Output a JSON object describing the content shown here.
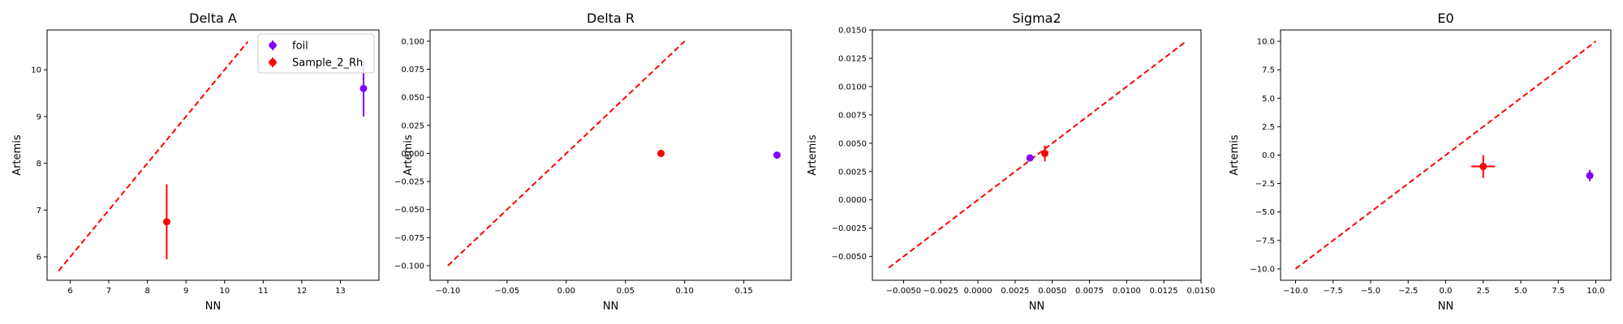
{
  "chart_data": [
    {
      "type": "scatter",
      "title": "Delta A",
      "xlabel": "NN",
      "ylabel": "Artemis",
      "xlim": [
        5.4,
        14.0
      ],
      "ylim": [
        5.5,
        10.85
      ],
      "xticks": [
        "6",
        "7",
        "8",
        "9",
        "10",
        "11",
        "12",
        "13"
      ],
      "xtick_values": [
        6,
        7,
        8,
        9,
        10,
        11,
        12,
        13
      ],
      "yticks": [
        "6",
        "7",
        "8",
        "9",
        "10"
      ],
      "ytick_values": [
        6,
        7,
        8,
        9,
        10
      ],
      "reference_line": {
        "x": [
          5.7,
          10.6
        ],
        "y": [
          5.7,
          10.6
        ],
        "color": "#ff0000",
        "style": "dashed"
      },
      "legend": {
        "position": "top-right",
        "entries": [
          "foil",
          "Sample_2_Rh"
        ]
      },
      "series": [
        {
          "name": "foil",
          "color": "#7f00ff",
          "points": [
            {
              "x": 13.6,
              "y": 9.6,
              "xerr": 0,
              "yerr": 0.6
            }
          ]
        },
        {
          "name": "Sample_2_Rh",
          "color": "#ff0000",
          "points": [
            {
              "x": 8.5,
              "y": 6.75,
              "xerr": 0,
              "yerr": 0.8
            }
          ]
        }
      ]
    },
    {
      "type": "scatter",
      "title": "Delta R",
      "xlabel": "NN",
      "ylabel": "Artemis",
      "xlim": [
        -0.115,
        0.19
      ],
      "ylim": [
        -0.113,
        0.11
      ],
      "xticks": [
        "−0.10",
        "−0.05",
        "0.00",
        "0.05",
        "0.10",
        "0.15"
      ],
      "xtick_values": [
        -0.1,
        -0.05,
        0,
        0.05,
        0.1,
        0.15
      ],
      "yticks": [
        "−0.100",
        "−0.075",
        "−0.050",
        "−0.025",
        "0.000",
        "0.025",
        "0.050",
        "0.075",
        "0.100"
      ],
      "ytick_values": [
        -0.1,
        -0.075,
        -0.05,
        -0.025,
        0,
        0.025,
        0.05,
        0.075,
        0.1
      ],
      "reference_line": {
        "x": [
          -0.1,
          0.1
        ],
        "y": [
          -0.1,
          0.1
        ],
        "color": "#ff0000",
        "style": "dashed"
      },
      "series": [
        {
          "name": "foil",
          "color": "#7f00ff",
          "points": [
            {
              "x": 0.178,
              "y": -0.0015,
              "xerr": 0.001,
              "yerr": 0.002
            }
          ]
        },
        {
          "name": "Sample_2_Rh",
          "color": "#ff0000",
          "points": [
            {
              "x": 0.08,
              "y": 0.0,
              "xerr": 0.003,
              "yerr": 0.003
            }
          ]
        }
      ]
    },
    {
      "type": "scatter",
      "title": "Sigma2",
      "xlabel": "NN",
      "ylabel": "Artemis",
      "xlim": [
        -0.0071,
        0.015
      ],
      "ylim": [
        -0.0071,
        0.015
      ],
      "xticks": [
        "−0.0050",
        "−0.0025",
        "0.0000",
        "0.0025",
        "0.0050",
        "0.0075",
        "0.0100",
        "0.0125",
        "0.0150"
      ],
      "xtick_values": [
        -0.005,
        -0.0025,
        0,
        0.0025,
        0.005,
        0.0075,
        0.01,
        0.0125,
        0.015
      ],
      "yticks": [
        "−0.0050",
        "−0.0025",
        "0.0000",
        "0.0025",
        "0.0050",
        "0.0075",
        "0.0100",
        "0.0125",
        "0.0150"
      ],
      "ytick_values": [
        -0.005,
        -0.0025,
        0,
        0.0025,
        0.005,
        0.0075,
        0.01,
        0.0125,
        0.015
      ],
      "reference_line": {
        "x": [
          -0.006,
          0.014
        ],
        "y": [
          -0.006,
          0.014
        ],
        "color": "#ff0000",
        "style": "dashed"
      },
      "series": [
        {
          "name": "foil",
          "color": "#7f00ff",
          "points": [
            {
              "x": 0.0035,
              "y": 0.0037,
              "xerr": 0.0002,
              "yerr": 0.0002
            }
          ]
        },
        {
          "name": "Sample_2_Rh",
          "color": "#ff0000",
          "points": [
            {
              "x": 0.0045,
              "y": 0.0041,
              "xerr": 0.0002,
              "yerr": 0.0007
            }
          ]
        }
      ]
    },
    {
      "type": "scatter",
      "title": "E0",
      "xlabel": "NN",
      "ylabel": "Artemis",
      "xlim": [
        -11.0,
        11.0
      ],
      "ylim": [
        -11.0,
        11.0
      ],
      "xticks": [
        "−10.0",
        "−7.5",
        "−5.0",
        "−2.5",
        "0.0",
        "2.5",
        "5.0",
        "7.5",
        "10.0"
      ],
      "xtick_values": [
        -10,
        -7.5,
        -5,
        -2.5,
        0,
        2.5,
        5,
        7.5,
        10
      ],
      "yticks": [
        "−10.0",
        "−7.5",
        "−5.0",
        "−2.5",
        "0.0",
        "2.5",
        "5.0",
        "7.5",
        "10.0"
      ],
      "ytick_values": [
        -10,
        -7.5,
        -5,
        -2.5,
        0,
        2.5,
        5,
        7.5,
        10
      ],
      "reference_line": {
        "x": [
          -10,
          10
        ],
        "y": [
          -10,
          10
        ],
        "color": "#ff0000",
        "style": "dashed"
      },
      "series": [
        {
          "name": "foil",
          "color": "#7f00ff",
          "points": [
            {
              "x": 9.6,
              "y": -1.8,
              "xerr": 0.15,
              "yerr": 0.5
            }
          ]
        },
        {
          "name": "Sample_2_Rh",
          "color": "#ff0000",
          "points": [
            {
              "x": 2.5,
              "y": -1.0,
              "xerr": 0.8,
              "yerr": 1.0
            }
          ]
        }
      ]
    }
  ]
}
